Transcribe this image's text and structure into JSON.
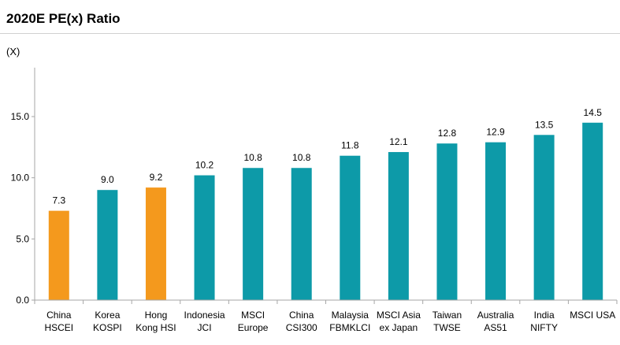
{
  "chart_data": {
    "type": "bar",
    "title": "2020E PE(x) Ratio",
    "unit_label": "(X)",
    "categories": [
      [
        "China",
        "HSCEI"
      ],
      [
        "Korea",
        "KOSPI"
      ],
      [
        "Hong",
        "Kong HSI"
      ],
      [
        "Indonesia",
        "JCI"
      ],
      [
        "MSCI",
        "Europe"
      ],
      [
        "China",
        "CSI300"
      ],
      [
        "Malaysia",
        "FBMKLCI"
      ],
      [
        "MSCI Asia",
        "ex Japan"
      ],
      [
        "Taiwan",
        "TWSE"
      ],
      [
        "Australia",
        "AS51"
      ],
      [
        "India",
        "NIFTY"
      ],
      [
        "MSCI USA"
      ]
    ],
    "values": [
      7.3,
      9.0,
      9.2,
      10.2,
      10.8,
      10.8,
      11.8,
      12.1,
      12.8,
      12.9,
      13.5,
      14.5
    ],
    "value_labels": [
      "7.3",
      "9.0",
      "9.2",
      "10.2",
      "10.8",
      "10.8",
      "11.8",
      "12.1",
      "12.8",
      "12.9",
      "13.5",
      "14.5"
    ],
    "highlighted": [
      true,
      false,
      true,
      false,
      false,
      false,
      false,
      false,
      false,
      false,
      false,
      false
    ],
    "ylim": [
      0,
      19
    ],
    "yticks": [
      0,
      5,
      10,
      15
    ],
    "ytick_labels": [
      "0.0",
      "5.0",
      "10.0",
      "15.0"
    ],
    "grid": false,
    "colors": {
      "default": "#0d9aa8",
      "highlight": "#f4991d"
    }
  }
}
